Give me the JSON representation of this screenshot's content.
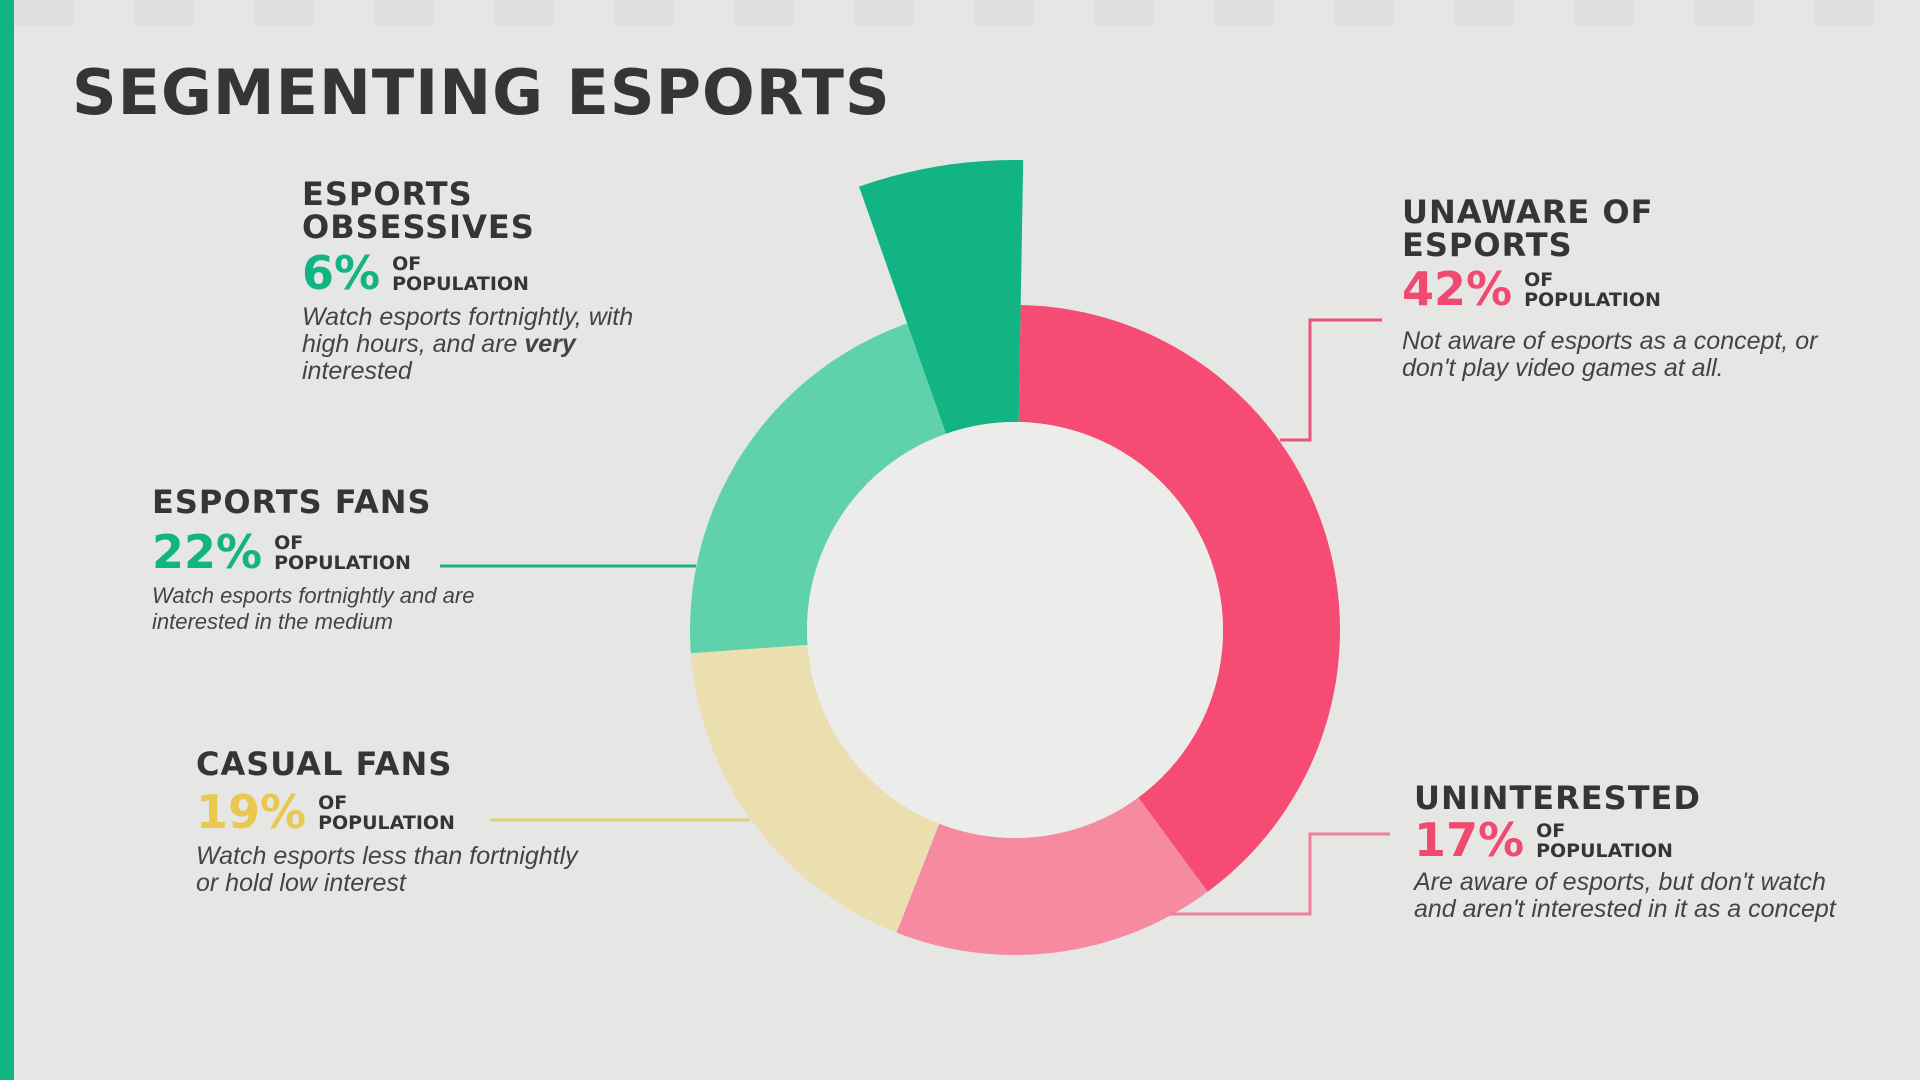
{
  "page": {
    "title": "SEGMENTING ESPORTS",
    "of_label": "OF",
    "population_label": "POPULATION"
  },
  "chart_data": {
    "type": "pie",
    "variant": "donut",
    "title": "SEGMENTING ESPORTS",
    "categories": [
      "Unaware of Esports",
      "Uninterested",
      "Casual Fans",
      "Esports Fans",
      "Esports Obsessives"
    ],
    "values": [
      42,
      17,
      19,
      22,
      6
    ],
    "unit": "% of population",
    "highlighted_slice": "Esports Obsessives",
    "colors": {
      "unaware": "#f64b73",
      "uninterested": "#f58aa0",
      "casual": "#ebdfb0",
      "fans": "#5fd2ab",
      "obsessives": "#13b483"
    }
  },
  "segments": [
    {
      "id": "obsessives",
      "name_line1": "ESPORTS",
      "name_line2": "OBSESSIVES",
      "pct": "6%",
      "color": "#13b483",
      "desc_pre": "Watch esports fortnightly, with high hours, and are ",
      "desc_bold": "very",
      "desc_post": " interested"
    },
    {
      "id": "fans",
      "name_line1": "ESPORTS FANS",
      "pct": "22%",
      "color": "#13b483",
      "desc": "Watch esports fortnightly and are interested in the medium"
    },
    {
      "id": "casual",
      "name_line1": "CASUAL FANS",
      "pct": "19%",
      "color": "#e9c850",
      "desc": "Watch esports less than fortnightly or hold low interest"
    },
    {
      "id": "unaware",
      "name_line1": "UNAWARE OF",
      "name_line2": "ESPORTS",
      "pct": "42%",
      "color": "#f04a70",
      "desc": "Not aware of esports as a concept, or don't play video games at all."
    },
    {
      "id": "uninterested",
      "name_line1": "UNINTERESTED",
      "pct": "17%",
      "color": "#f04a70",
      "desc": "Are aware of esports, but don't watch and aren't interested in it as a concept"
    }
  ]
}
